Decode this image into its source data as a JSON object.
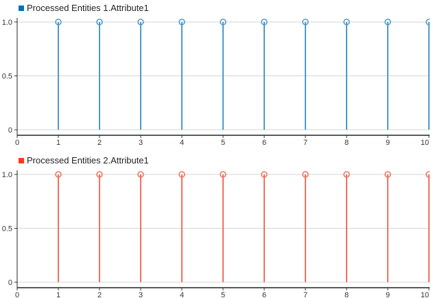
{
  "chart_data": [
    {
      "type": "stem",
      "legend_placement": "top-left",
      "grid": true,
      "xlim": [
        0,
        10
      ],
      "ylim": [
        0,
        1
      ],
      "xticks": [
        "0",
        "1",
        "2",
        "3",
        "4",
        "5",
        "6",
        "7",
        "8",
        "9",
        "10"
      ],
      "yticks": [
        "0",
        "0.5",
        "1.0"
      ],
      "series": [
        {
          "name": "Processed Entities 1.Attribute1",
          "color": "#0072bd",
          "stem_color": "#4a9ad0",
          "x": [
            1,
            2,
            3,
            4,
            5,
            6,
            7,
            8,
            9,
            10
          ],
          "y": [
            1,
            1,
            1,
            1,
            1,
            1,
            1,
            1,
            1,
            1
          ]
        }
      ]
    },
    {
      "type": "stem",
      "legend_placement": "top-left",
      "grid": true,
      "xlim": [
        0,
        10
      ],
      "ylim": [
        0,
        1
      ],
      "xticks": [
        "0",
        "1",
        "2",
        "3",
        "4",
        "5",
        "6",
        "7",
        "8",
        "9",
        "10"
      ],
      "yticks": [
        "0",
        "0.5",
        "1.0"
      ],
      "series": [
        {
          "name": "Processed Entities 2.Attribute1",
          "color": "#ff3a14",
          "stem_color": "#f2705e",
          "x": [
            1,
            2,
            3,
            4,
            5,
            6,
            7,
            8,
            9,
            10
          ],
          "y": [
            1,
            1,
            1,
            1,
            1,
            1,
            1,
            1,
            1,
            1
          ]
        }
      ]
    }
  ]
}
